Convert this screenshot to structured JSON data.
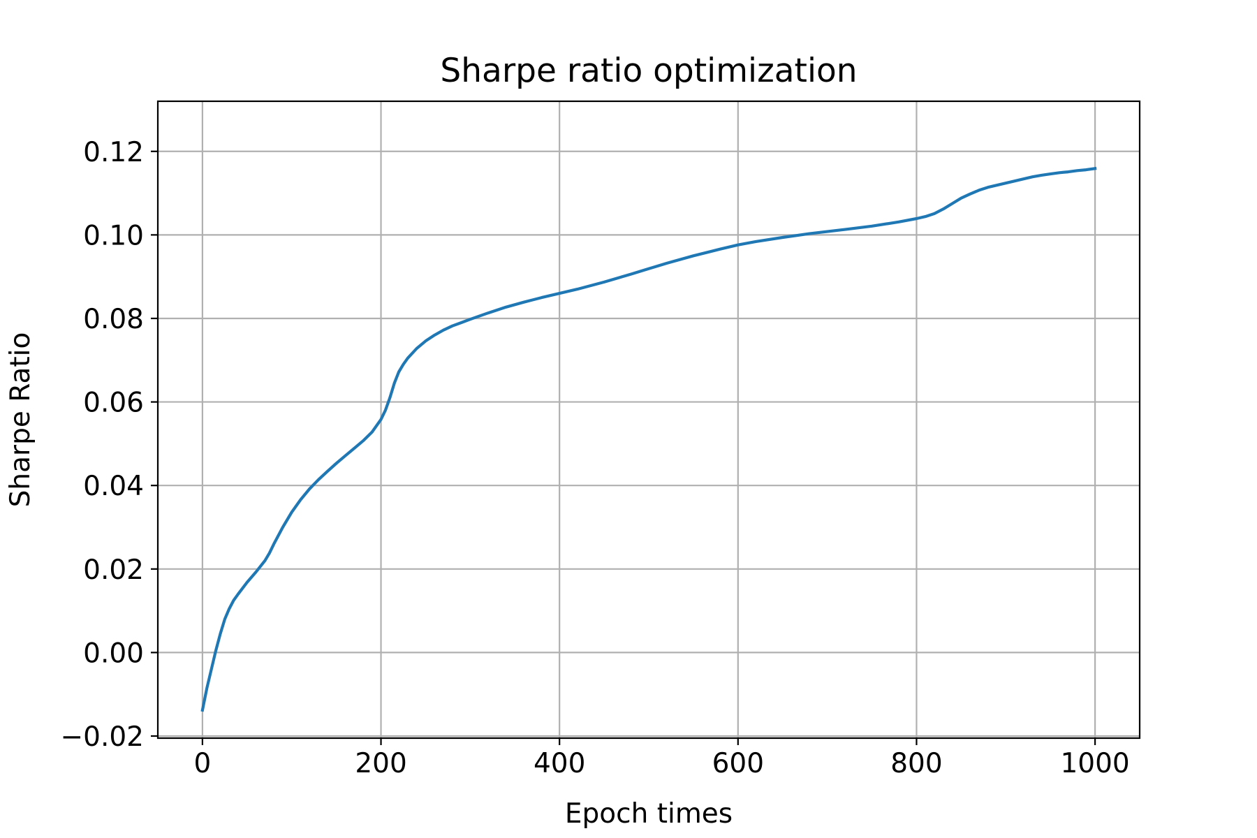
{
  "chart_data": {
    "type": "line",
    "title": "Sharpe ratio optimization",
    "xlabel": "Epoch times",
    "ylabel": "Sharpe Ratio",
    "xlim": [
      -50,
      1050
    ],
    "ylim": [
      -0.0205,
      0.132
    ],
    "xticks": [
      0,
      200,
      400,
      600,
      800,
      1000
    ],
    "xtick_labels": [
      "0",
      "200",
      "400",
      "600",
      "800",
      "1000"
    ],
    "yticks": [
      -0.02,
      0.0,
      0.02,
      0.04,
      0.06,
      0.08,
      0.1,
      0.12
    ],
    "ytick_labels": [
      "−0.02",
      "0.00",
      "0.02",
      "0.04",
      "0.06",
      "0.08",
      "0.10",
      "0.12"
    ],
    "grid": true,
    "line_color": "#1f77b4",
    "grid_color": "#b0b0b0",
    "series": [
      {
        "x": [
          0,
          5,
          10,
          15,
          20,
          25,
          30,
          35,
          40,
          50,
          60,
          70,
          75,
          80,
          90,
          100,
          110,
          120,
          130,
          140,
          150,
          160,
          170,
          180,
          190,
          200,
          205,
          210,
          215,
          220,
          225,
          230,
          240,
          250,
          260,
          270,
          280,
          290,
          300,
          320,
          340,
          360,
          380,
          400,
          420,
          450,
          480,
          500,
          520,
          550,
          580,
          600,
          620,
          650,
          680,
          700,
          720,
          750,
          780,
          800,
          810,
          820,
          830,
          840,
          850,
          860,
          870,
          880,
          890,
          900,
          910,
          920,
          930,
          940,
          950,
          960,
          970,
          980,
          990,
          1000
        ],
        "y": [
          -0.0138,
          -0.0085,
          -0.004,
          0.0005,
          0.0045,
          0.008,
          0.0105,
          0.0125,
          0.014,
          0.0168,
          0.0193,
          0.022,
          0.0238,
          0.026,
          0.03,
          0.0336,
          0.0366,
          0.0392,
          0.0414,
          0.0434,
          0.0453,
          0.0471,
          0.0489,
          0.0507,
          0.0528,
          0.0558,
          0.058,
          0.061,
          0.0645,
          0.0672,
          0.069,
          0.0705,
          0.0728,
          0.0746,
          0.076,
          0.0772,
          0.0782,
          0.079,
          0.0798,
          0.0813,
          0.0827,
          0.0839,
          0.085,
          0.086,
          0.087,
          0.0887,
          0.0906,
          0.0919,
          0.0932,
          0.095,
          0.0966,
          0.0976,
          0.0984,
          0.0994,
          0.1003,
          0.1008,
          0.1013,
          0.1021,
          0.1031,
          0.1039,
          0.1044,
          0.1051,
          0.1062,
          0.1075,
          0.1088,
          0.1098,
          0.1107,
          0.1114,
          0.1119,
          0.1124,
          0.1129,
          0.1134,
          0.1139,
          0.1143,
          0.1146,
          0.1149,
          0.1151,
          0.1154,
          0.1156,
          0.1159
        ]
      }
    ]
  }
}
